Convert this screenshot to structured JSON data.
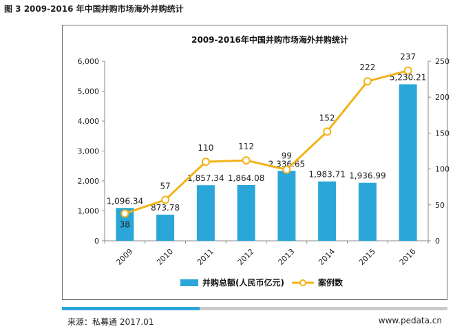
{
  "figure_caption": "图 3 2009-2016 年中国并购市场海外并购统计",
  "chart_data": {
    "type": "bar",
    "title": "2009-2016年中国并购市场海外并购统计",
    "categories": [
      "2009",
      "2010",
      "2011",
      "2012",
      "2013",
      "2014",
      "2015",
      "2016"
    ],
    "series": [
      {
        "name": "并购总额(人民币亿元)",
        "type": "bar",
        "axis": "left",
        "color": "#2aa7d8",
        "values": [
          1096.34,
          873.78,
          1857.34,
          1864.08,
          2336.65,
          1983.71,
          1936.99,
          5230.21
        ],
        "labels": [
          "1,096.34",
          "873.78",
          "1,857.34",
          "1,864.08",
          "2,336.65",
          "1,983.71",
          "1,936.99",
          "5,230.21"
        ]
      },
      {
        "name": "案例数",
        "type": "line",
        "axis": "right",
        "color": "#f2b318",
        "values": [
          38,
          57,
          110,
          112,
          99,
          152,
          222,
          237
        ],
        "labels": [
          "38",
          "57",
          "110",
          "112",
          "99",
          "152",
          "222",
          "237"
        ]
      }
    ],
    "ylim_left": [
      0,
      6000
    ],
    "yticks_left": [
      "0",
      "1,000",
      "2,000",
      "3,000",
      "4,000",
      "5,000",
      "6,000"
    ],
    "yticks_left_values": [
      0,
      1000,
      2000,
      3000,
      4000,
      5000,
      6000
    ],
    "ylim_right": [
      0,
      250
    ],
    "yticks_right": [
      "0",
      "50",
      "100",
      "150",
      "200",
      "250"
    ],
    "yticks_right_values": [
      0,
      50,
      100,
      150,
      200,
      250
    ],
    "grid": false,
    "legend_position": "bottom"
  },
  "footer": {
    "source": "来源：私募通 2017.01",
    "url": "www.pedata.cn"
  }
}
